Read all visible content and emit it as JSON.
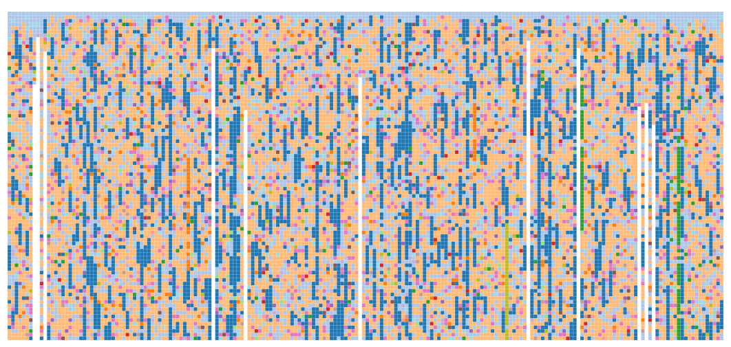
{
  "chart_data": {
    "type": "heatmap",
    "title": "",
    "xlabel": "",
    "ylabel": "",
    "legend": "none",
    "grid": false,
    "n_columns": 200,
    "n_rows": 90,
    "palette": {
      "orange": "#ffbb78",
      "lightblue": "#aec7e8",
      "blue": "#1f77b4",
      "pink": "#e377c2",
      "cyan": "#9edae5",
      "darkorange": "#ff7f0e",
      "green": "#2ca02c",
      "red": "#d62728",
      "purple": "#9467bd",
      "lightgreen": "#98df8a",
      "lightpurple": "#c5b0d5",
      "brown": "#8c564b",
      "lightbrown": "#c49c94",
      "olive": "#bcbd22",
      "salmon": "#ff9896",
      "empty": "#ffffff"
    },
    "column_profile": {
      "top_band_color": "lightblue",
      "gap_columns": [
        7,
        8,
        10,
        57,
        66,
        98,
        145,
        159,
        176,
        178,
        180
      ],
      "dark_columns": [
        21,
        24,
        37,
        45,
        58,
        62,
        63,
        86,
        92,
        104,
        109,
        111,
        112,
        128,
        148,
        151,
        158,
        181,
        184,
        188
      ],
      "accent_columns": [
        {
          "col": 160,
          "color": "green",
          "from_row": 18,
          "to_row": 60
        },
        {
          "col": 187,
          "color": "green",
          "from_row": 34,
          "to_row": 89
        },
        {
          "col": 139,
          "color": "olive",
          "from_row": 58,
          "to_row": 89
        },
        {
          "col": 130,
          "color": "darkorange",
          "from_row": 25,
          "to_row": 40
        },
        {
          "col": 50,
          "color": "darkorange",
          "from_row": 40,
          "to_row": 70
        }
      ]
    }
  }
}
